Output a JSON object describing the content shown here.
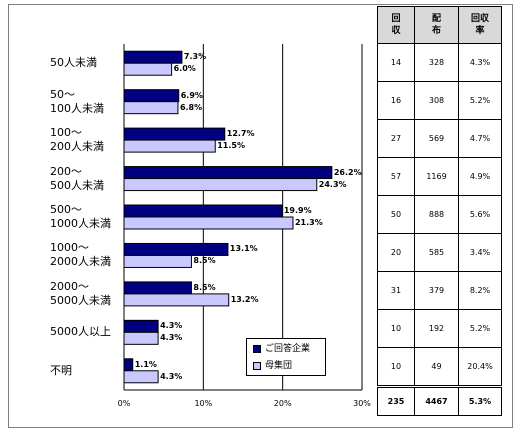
{
  "colors": {
    "series_a": "#000080",
    "series_b": "#c9c9ff"
  },
  "chart_data": {
    "type": "bar",
    "orientation": "horizontal",
    "categories": [
      "50人未満",
      "50～\n100人未満",
      "100～\n200人未満",
      "200～\n500人未満",
      "500～\n1000人未満",
      "1000～\n2000人未満",
      "2000～\n5000人未満",
      "5000人以上",
      "不明"
    ],
    "series": [
      {
        "name": "ご回答企業",
        "values": [
          7.3,
          6.9,
          12.7,
          26.2,
          19.9,
          13.1,
          8.5,
          4.3,
          1.1
        ],
        "labels": [
          "7.3%",
          "6.9%",
          "12.7%",
          "26.2%",
          "19.9%",
          "13.1%",
          "8.5%",
          "4.3%",
          "1.1%"
        ]
      },
      {
        "name": "母集団",
        "values": [
          6.0,
          6.8,
          11.5,
          24.3,
          21.3,
          8.5,
          13.2,
          4.3,
          4.3
        ],
        "labels": [
          "6.0%",
          "6.8%",
          "11.5%",
          "24.3%",
          "21.3%",
          "8.5%",
          "13.2%",
          "4.3%",
          "4.3%"
        ]
      }
    ],
    "xlim": [
      0,
      30
    ],
    "xticks": [
      "0%",
      "10%",
      "20%",
      "30%"
    ],
    "grid": true,
    "legend_position": "bottom-right"
  },
  "table": {
    "headers": [
      "回\n収",
      "配\n布",
      "回収\n率"
    ],
    "rows": [
      [
        "14",
        "328",
        "4.3%"
      ],
      [
        "16",
        "308",
        "5.2%"
      ],
      [
        "27",
        "569",
        "4.7%"
      ],
      [
        "57",
        "1169",
        "4.9%"
      ],
      [
        "50",
        "888",
        "5.6%"
      ],
      [
        "20",
        "585",
        "3.4%"
      ],
      [
        "31",
        "379",
        "8.2%"
      ],
      [
        "10",
        "192",
        "5.2%"
      ],
      [
        "10",
        "49",
        "20.4%"
      ]
    ],
    "total": [
      "235",
      "4467",
      "5.3%"
    ]
  }
}
